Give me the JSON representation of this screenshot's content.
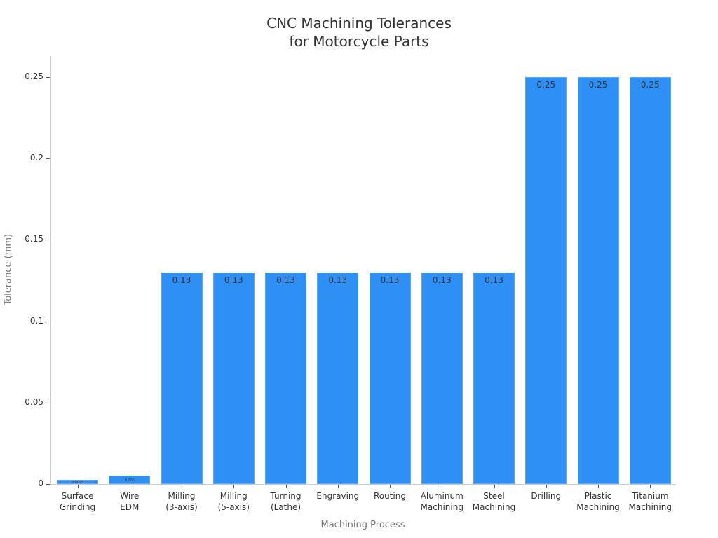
{
  "title_line1": "CNC Machining Tolerances",
  "title_line2": "for Motorcycle Parts",
  "xlabel": "Machining Process",
  "ylabel": "Tolerance (mm)",
  "yticks": [
    "0",
    "0.05",
    "0.1",
    "0.15",
    "0.2",
    "0.25"
  ],
  "bar_color": "#2e90f5",
  "chart_data": {
    "type": "bar",
    "title": "CNC Machining Tolerances for Motorcycle Parts",
    "xlabel": "Machining Process",
    "ylabel": "Tolerance (mm)",
    "ylim": [
      0,
      0.26
    ],
    "grid": false,
    "categories": [
      "Surface Grinding",
      "Wire EDM",
      "Milling (3-axis)",
      "Milling (5-axis)",
      "Turning (Lathe)",
      "Engraving",
      "Routing",
      "Aluminum Machining",
      "Steel Machining",
      "Drilling",
      "Plastic Machining",
      "Titanium Machining"
    ],
    "values": [
      0.0025,
      0.005,
      0.13,
      0.13,
      0.13,
      0.13,
      0.13,
      0.13,
      0.13,
      0.25,
      0.25,
      0.25
    ],
    "value_labels": [
      "0.0025",
      "0.005",
      "0.13",
      "0.13",
      "0.13",
      "0.13",
      "0.13",
      "0.13",
      "0.13",
      "0.25",
      "0.25",
      "0.25"
    ]
  },
  "category_lines": [
    [
      "Surface",
      "Grinding"
    ],
    [
      "Wire",
      "EDM"
    ],
    [
      "Milling",
      "(3-axis)"
    ],
    [
      "Milling",
      "(5-axis)"
    ],
    [
      "Turning",
      "(Lathe)"
    ],
    [
      "Engraving",
      ""
    ],
    [
      "Routing",
      ""
    ],
    [
      "Aluminum",
      "Machining"
    ],
    [
      "Steel",
      "Machining"
    ],
    [
      "Drilling",
      ""
    ],
    [
      "Plastic",
      "Machining"
    ],
    [
      "Titanium",
      "Machining"
    ]
  ]
}
